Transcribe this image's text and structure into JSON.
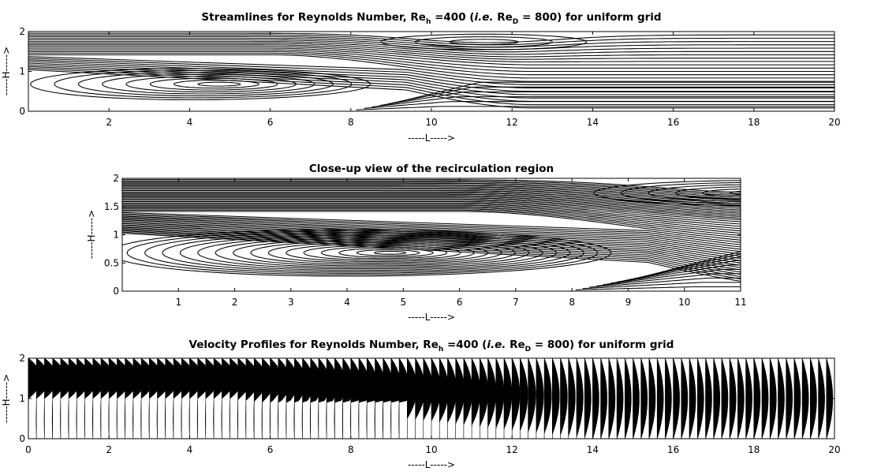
{
  "chart_data": [
    {
      "type": "streamline",
      "title_parts": [
        "Streamlines for Reynolds Number, Re",
        "h",
        " =400 (",
        "i.e.",
        " Re",
        "D",
        " = 800) for uniform grid"
      ],
      "xlabel": "-----L----->",
      "ylabel": "-----H----->",
      "xlim": [
        0,
        20
      ],
      "ylim": [
        0,
        2
      ],
      "xticks": [
        2,
        4,
        6,
        8,
        10,
        12,
        14,
        16,
        18,
        20
      ],
      "yticks": [
        0,
        1,
        2
      ],
      "primary_vortex": {
        "x_range": [
          0,
          9.3
        ],
        "center": [
          4.2,
          0.68
        ]
      },
      "secondary_vortex": {
        "x_range": [
          8,
          14.8
        ],
        "center": [
          11.3,
          1.72
        ]
      }
    },
    {
      "type": "streamline",
      "title": "Close-up view of the recirculation region",
      "xlabel": "-----L----->",
      "ylabel": "-----H----->",
      "xlim": [
        0,
        11
      ],
      "ylim": [
        0,
        2
      ],
      "xticks": [
        1,
        2,
        3,
        4,
        5,
        6,
        7,
        8,
        9,
        10,
        11
      ],
      "yticks": [
        0,
        0.5,
        1,
        1.5,
        2
      ],
      "primary_vortex": {
        "x_range": [
          0,
          9.3
        ],
        "center": [
          4.2,
          0.68
        ]
      },
      "secondary_vortex": {
        "x_range": [
          8,
          14.8
        ],
        "center": [
          11.3,
          1.72
        ]
      }
    },
    {
      "type": "quiver",
      "title_parts": [
        "Velocity Profiles for Reynolds Number, Re",
        "h",
        " =400 (",
        "i.e.",
        " Re",
        "D",
        " = 800) for uniform grid"
      ],
      "xlabel": "-----L----->",
      "ylabel": "-----H----->",
      "xlim": [
        0,
        20
      ],
      "ylim": [
        0,
        2
      ],
      "xticks": [
        0,
        2,
        4,
        6,
        8,
        10,
        12,
        14,
        16,
        18,
        20
      ],
      "yticks": [
        0,
        1,
        2
      ],
      "profile_spacing": 0.2
    }
  ]
}
